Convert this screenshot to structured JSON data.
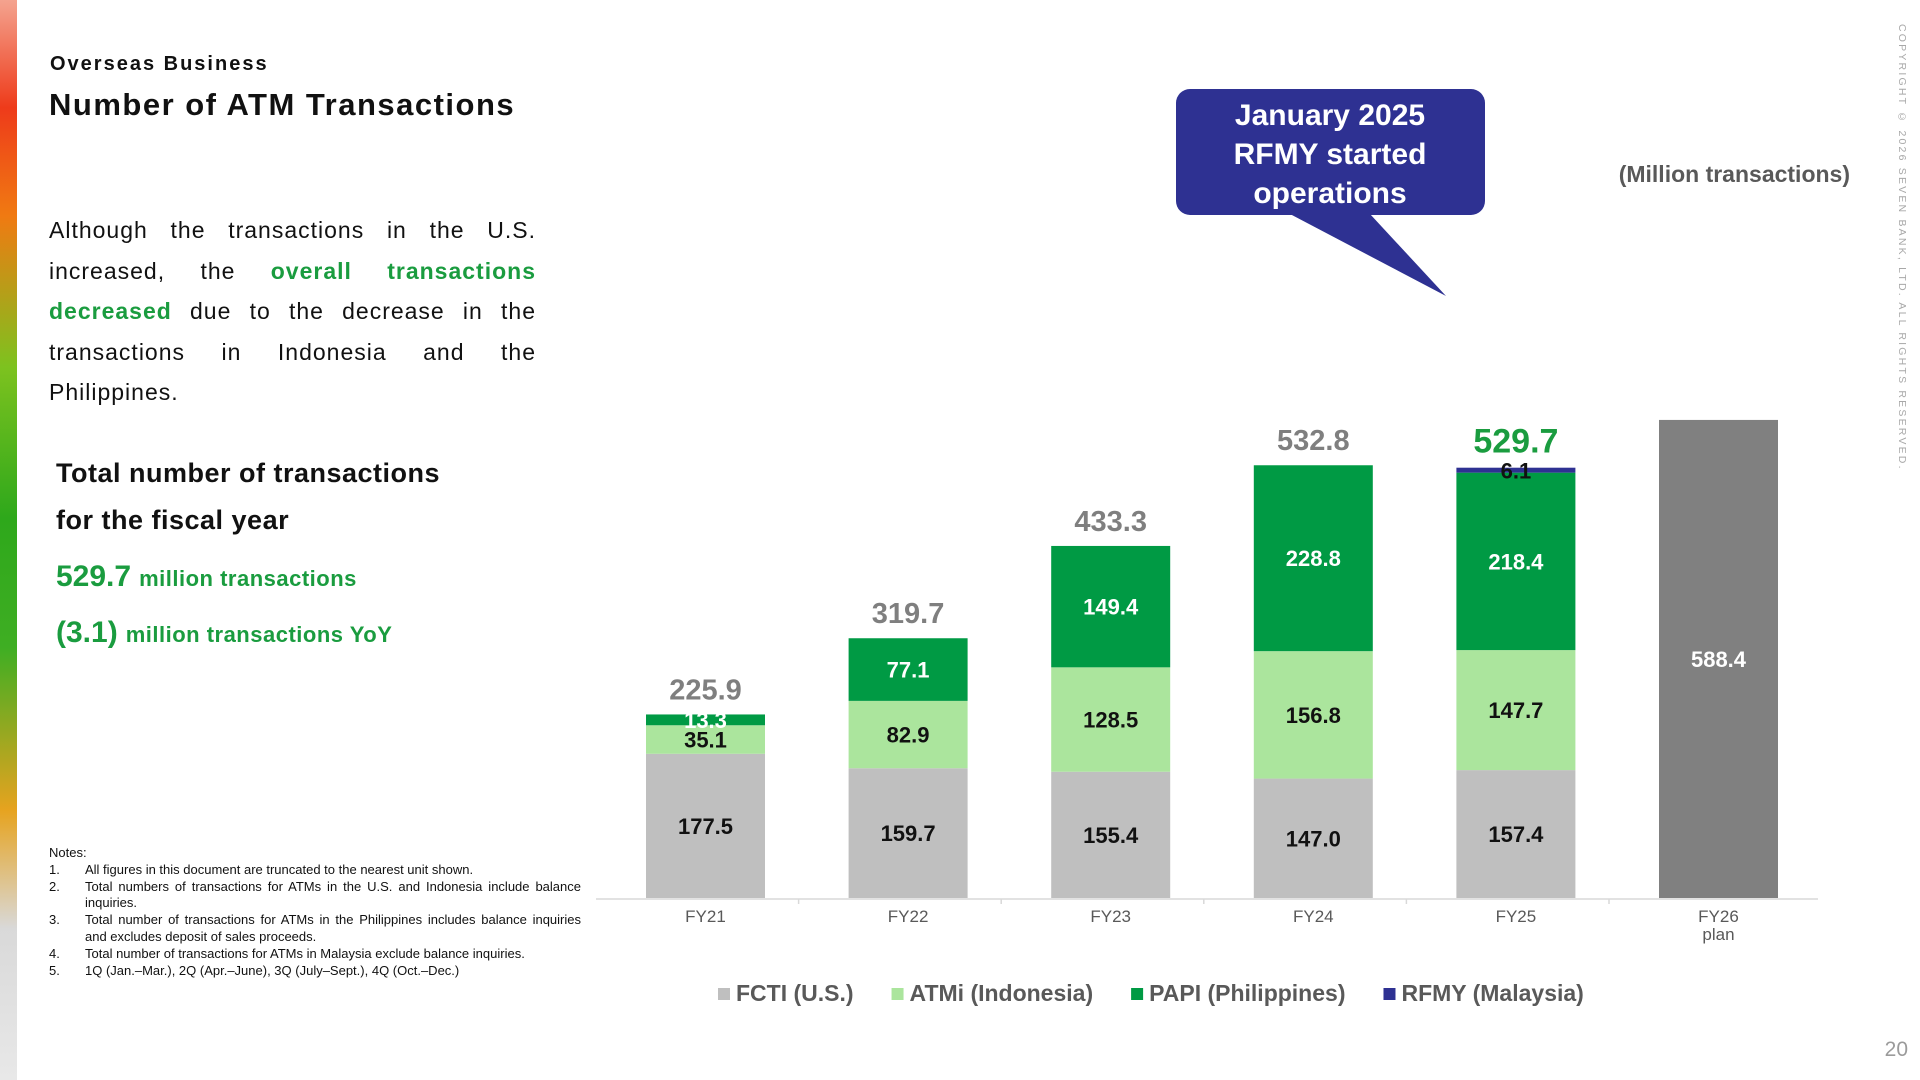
{
  "header": {
    "section": "Overseas Business",
    "title": "Number of ATM Transactions"
  },
  "description": {
    "part1": "Although the transactions in the U.S. increased, the ",
    "highlight": "overall transactions decreased",
    "part2": " due to the decrease in the transactions in Indonesia and the Philippines."
  },
  "summary": {
    "label_line1": "Total number of transactions",
    "label_line2": "for the fiscal year",
    "total_value": "529.7",
    "total_unit": "million transactions",
    "yoy_value": "(3.1)",
    "yoy_unit": "million transactions YoY"
  },
  "notes": {
    "heading": "Notes:",
    "items": [
      {
        "num": "1.",
        "text": "All figures in this document are truncated to the nearest unit shown."
      },
      {
        "num": "2.",
        "text": "Total numbers of transactions for ATMs in the U.S. and Indonesia include balance inquiries."
      },
      {
        "num": "3.",
        "text": "Total number of transactions for ATMs in the Philippines includes balance inquiries and excludes deposit of sales proceeds."
      },
      {
        "num": "4.",
        "text": "Total number of transactions for ATMs in Malaysia exclude balance inquiries."
      },
      {
        "num": "5.",
        "text": "1Q (Jan.–Mar.), 2Q (Apr.–June), 3Q (July–Sept.), 4Q (Oct.–Dec.)"
      }
    ]
  },
  "copyright": "COPYRIGHT © 2026 SEVEN BANK, LTD. ALL RIGHTS RESERVED.",
  "page_number": "20",
  "callout": {
    "line1": "January 2025",
    "line2": "RFMY started",
    "line3": "operations"
  },
  "colors": {
    "fcti": "#bfbfbf",
    "atmi": "#abe59d",
    "papi": "#009a44",
    "rfmy": "#2e3192",
    "plan": "#808080",
    "total_label": "#7f7f7f",
    "highlight_green": "#1a9c3f",
    "callout_bg": "#2e3192"
  },
  "chart_data": {
    "type": "bar",
    "stacked": true,
    "unit_label": "(Million transactions)",
    "categories": [
      "FY21",
      "FY22",
      "FY23",
      "FY24",
      "FY25",
      "FY26 plan"
    ],
    "category_lines": [
      [
        "FY21"
      ],
      [
        "FY22"
      ],
      [
        "FY23"
      ],
      [
        "FY24"
      ],
      [
        "FY25"
      ],
      [
        "FY26",
        "plan"
      ]
    ],
    "series": [
      {
        "name": "FCTI (U.S.)",
        "key": "fcti",
        "values": [
          177.5,
          159.7,
          155.4,
          147.0,
          157.4,
          null
        ]
      },
      {
        "name": "ATMi (Indonesia)",
        "key": "atmi",
        "values": [
          35.1,
          82.9,
          128.5,
          156.8,
          147.7,
          null
        ]
      },
      {
        "name": "PAPI (Philippines)",
        "key": "papi",
        "values": [
          13.3,
          77.1,
          149.4,
          228.8,
          218.4,
          null
        ]
      },
      {
        "name": "RFMY (Malaysia)",
        "key": "rfmy",
        "values": [
          null,
          null,
          null,
          null,
          6.1,
          null
        ]
      }
    ],
    "plan": {
      "category": "FY26 plan",
      "value": 588.4
    },
    "totals": [
      225.9,
      319.7,
      433.3,
      532.8,
      529.7,
      null
    ],
    "highlight_total_index": 4,
    "legend_position": "bottom",
    "grid": false,
    "ylim": [
      0,
      600
    ]
  }
}
